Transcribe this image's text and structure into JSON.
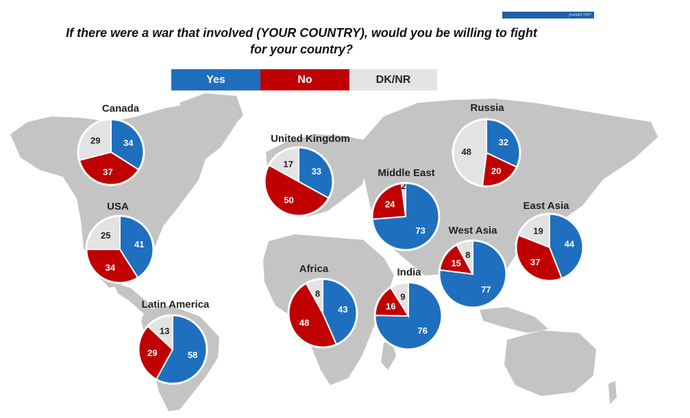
{
  "header": {
    "title_line1": "If there were a war that involved (YOUR COUNTRY), would you be willing to fight",
    "title_line2": "for your country?",
    "brand_text": "founded 1947"
  },
  "legend": {
    "yes": "Yes",
    "no": "No",
    "dk": "DK/NR"
  },
  "colors": {
    "yes": "#1f6fbf",
    "no": "#c00000",
    "dk": "#e3e3e3",
    "map": "#c4c4c4"
  },
  "chart_data": {
    "type": "pie",
    "categories": [
      "Yes",
      "No",
      "DK/NR"
    ],
    "regions": [
      {
        "name": "Canada",
        "values": [
          34,
          37,
          29
        ]
      },
      {
        "name": "USA",
        "values": [
          41,
          34,
          25
        ]
      },
      {
        "name": "Latin America",
        "values": [
          58,
          29,
          13
        ]
      },
      {
        "name": "United Kingdom",
        "values": [
          33,
          50,
          17
        ]
      },
      {
        "name": "Middle East",
        "values": [
          73,
          24,
          2
        ]
      },
      {
        "name": "Africa",
        "values": [
          43,
          48,
          8
        ]
      },
      {
        "name": "India",
        "values": [
          76,
          16,
          9
        ]
      },
      {
        "name": "Russia",
        "values": [
          32,
          20,
          48
        ]
      },
      {
        "name": "West Asia",
        "values": [
          77,
          15,
          8
        ]
      },
      {
        "name": "East Asia",
        "values": [
          44,
          37,
          19
        ]
      }
    ]
  }
}
